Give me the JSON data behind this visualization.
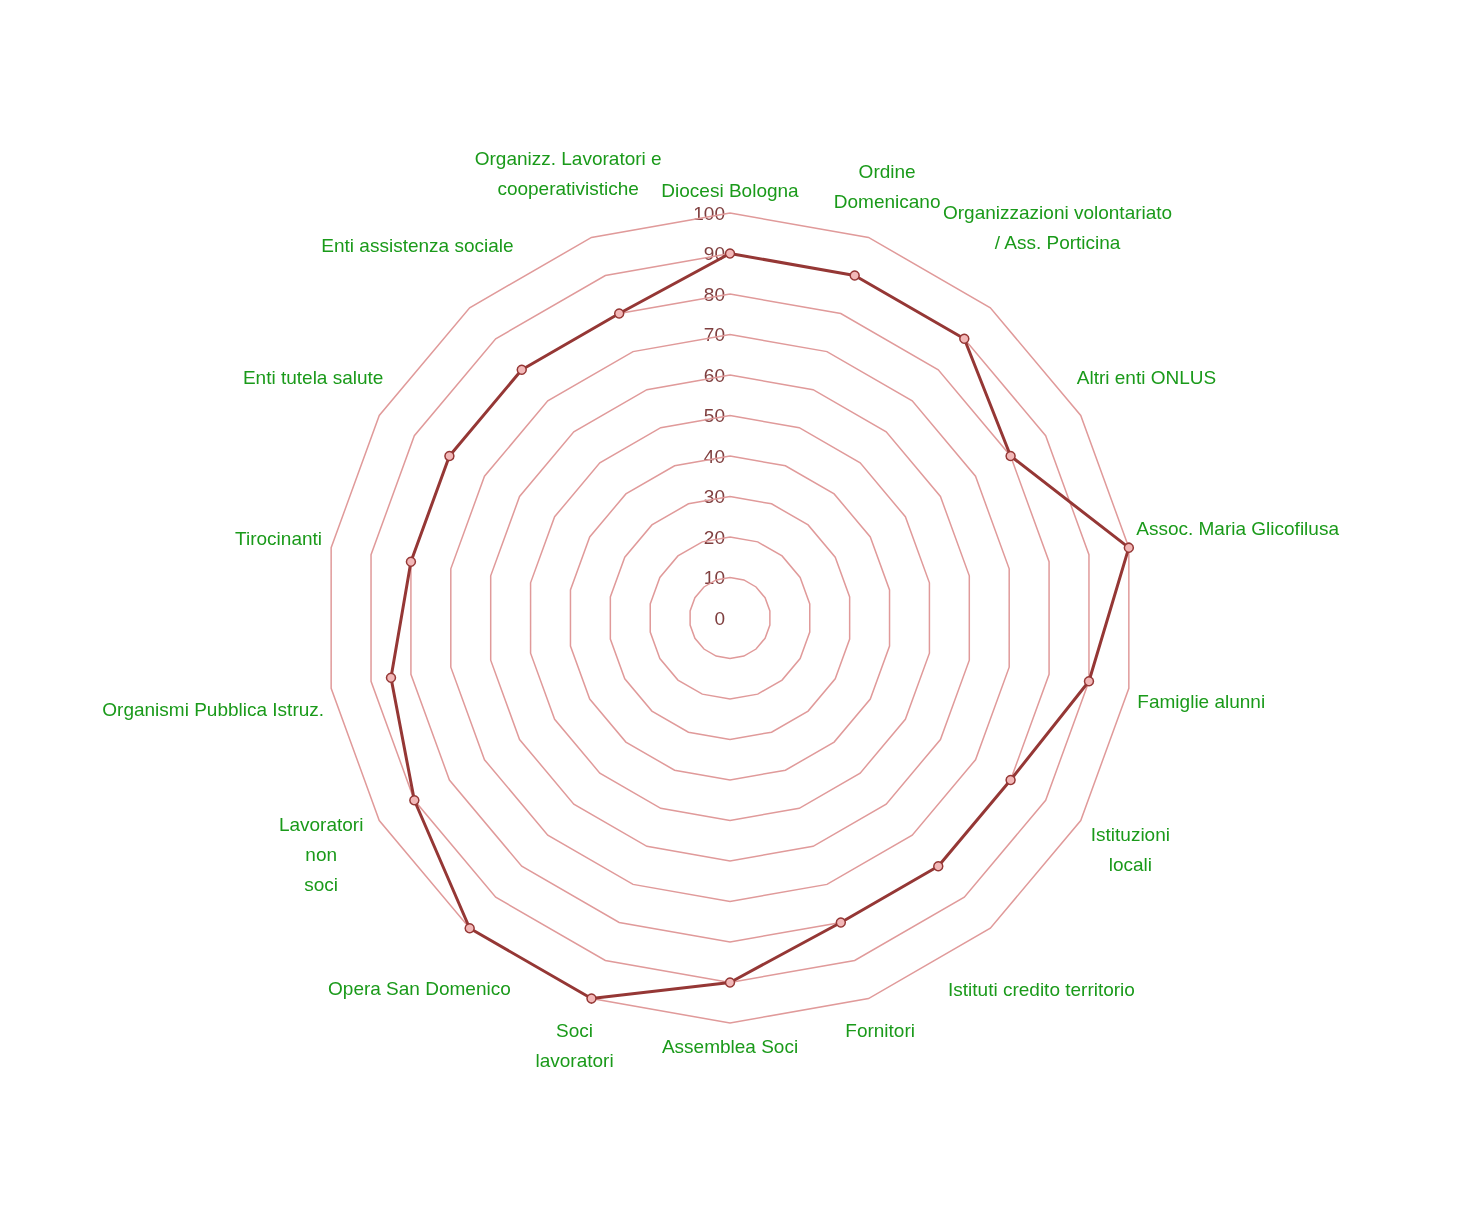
{
  "chart_data": {
    "type": "radar",
    "categories": [
      "Diocesi Bologna",
      "Ordine\nDomenicano",
      "Organizzazioni volontariato\n/ Ass. Porticina",
      "Altri enti ONLUS",
      "Assoc. Maria Glicofilusa",
      "Famiglie alunni",
      "Istituzioni\nlocali",
      "Istituti credito territorio",
      "Fornitori",
      "Assemblea Soci",
      "Soci\nlavoratori",
      "Opera San Domenico",
      "Lavoratori\nnon\nsoci",
      "Organismi Pubblica Istruz.",
      "Tirocinanti",
      "Enti tutela salute",
      "Enti assistenza sociale",
      "Organizz. Lavoratori e\ncooperativistiche"
    ],
    "series": [
      {
        "color": "#953735",
        "values": [
          90,
          90,
          90,
          80,
          100,
          90,
          80,
          80,
          80,
          90,
          100,
          100,
          90,
          85,
          80,
          80,
          80,
          80
        ]
      }
    ],
    "ylim": [
      0,
      100
    ],
    "yticks": [
      0,
      10,
      20,
      30,
      40,
      50,
      60,
      70,
      80,
      90,
      100
    ],
    "grid": true,
    "marker": "circle",
    "legend": false
  }
}
